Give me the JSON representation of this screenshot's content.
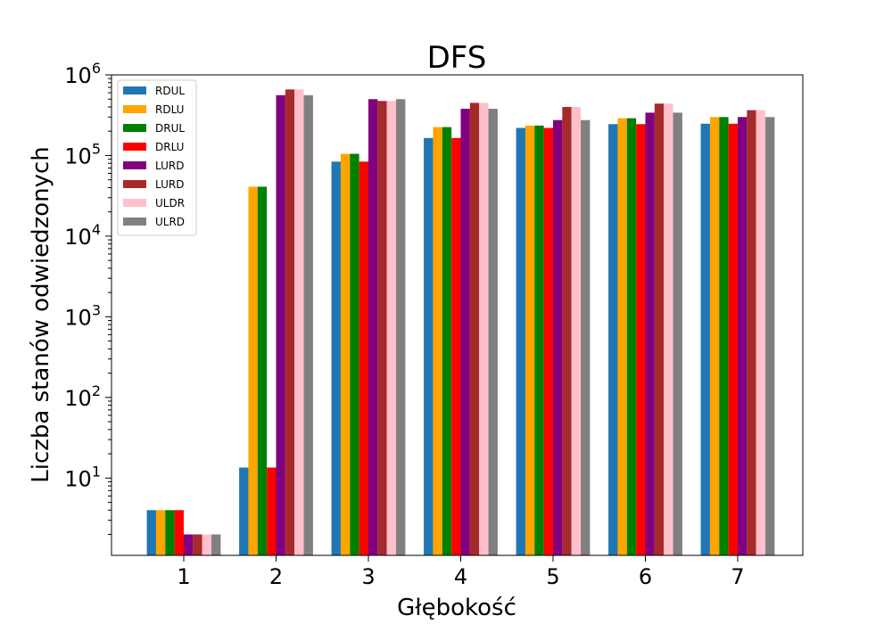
{
  "chart_data": {
    "type": "bar",
    "title": "DFS",
    "xlabel": "Głębokość",
    "ylabel": "Liczba stanów odwiedzonych",
    "yscale": "log",
    "ylim": [
      1.1,
      1000000
    ],
    "categories": [
      "1",
      "2",
      "3",
      "4",
      "5",
      "6",
      "7"
    ],
    "y_ticks": [
      {
        "base": "10",
        "exp": "1",
        "value": 10
      },
      {
        "base": "10",
        "exp": "2",
        "value": 100
      },
      {
        "base": "10",
        "exp": "3",
        "value": 1000
      },
      {
        "base": "10",
        "exp": "4",
        "value": 10000
      },
      {
        "base": "10",
        "exp": "5",
        "value": 100000
      },
      {
        "base": "10",
        "exp": "6",
        "value": 1000000
      }
    ],
    "legend_position": "top-left",
    "grid": false,
    "series": [
      {
        "name": "RDUL",
        "color": "#1f77b4",
        "values": [
          4,
          13.5,
          84000,
          165000,
          220000,
          245000,
          248000
        ]
      },
      {
        "name": "RDLU",
        "color": "#ffa500",
        "values": [
          4,
          41000,
          105000,
          225000,
          235000,
          290000,
          300000
        ]
      },
      {
        "name": "DRUL",
        "color": "#008000",
        "values": [
          4,
          41000,
          105000,
          225000,
          235000,
          290000,
          300000
        ]
      },
      {
        "name": "DRLU",
        "color": "#ff0000",
        "values": [
          4,
          13.5,
          84000,
          165000,
          220000,
          245000,
          248000
        ]
      },
      {
        "name": "LURD",
        "color": "#800080",
        "values": [
          2,
          560000,
          500000,
          380000,
          275000,
          340000,
          300000
        ]
      },
      {
        "name": "LURD",
        "color": "#a52a2a",
        "values": [
          2,
          660000,
          475000,
          450000,
          400000,
          440000,
          365000
        ]
      },
      {
        "name": "ULDR",
        "color": "#ffc0cb",
        "values": [
          2,
          660000,
          475000,
          450000,
          400000,
          440000,
          365000
        ]
      },
      {
        "name": "ULRD",
        "color": "#808080",
        "values": [
          2,
          560000,
          500000,
          380000,
          275000,
          340000,
          300000
        ]
      }
    ]
  }
}
